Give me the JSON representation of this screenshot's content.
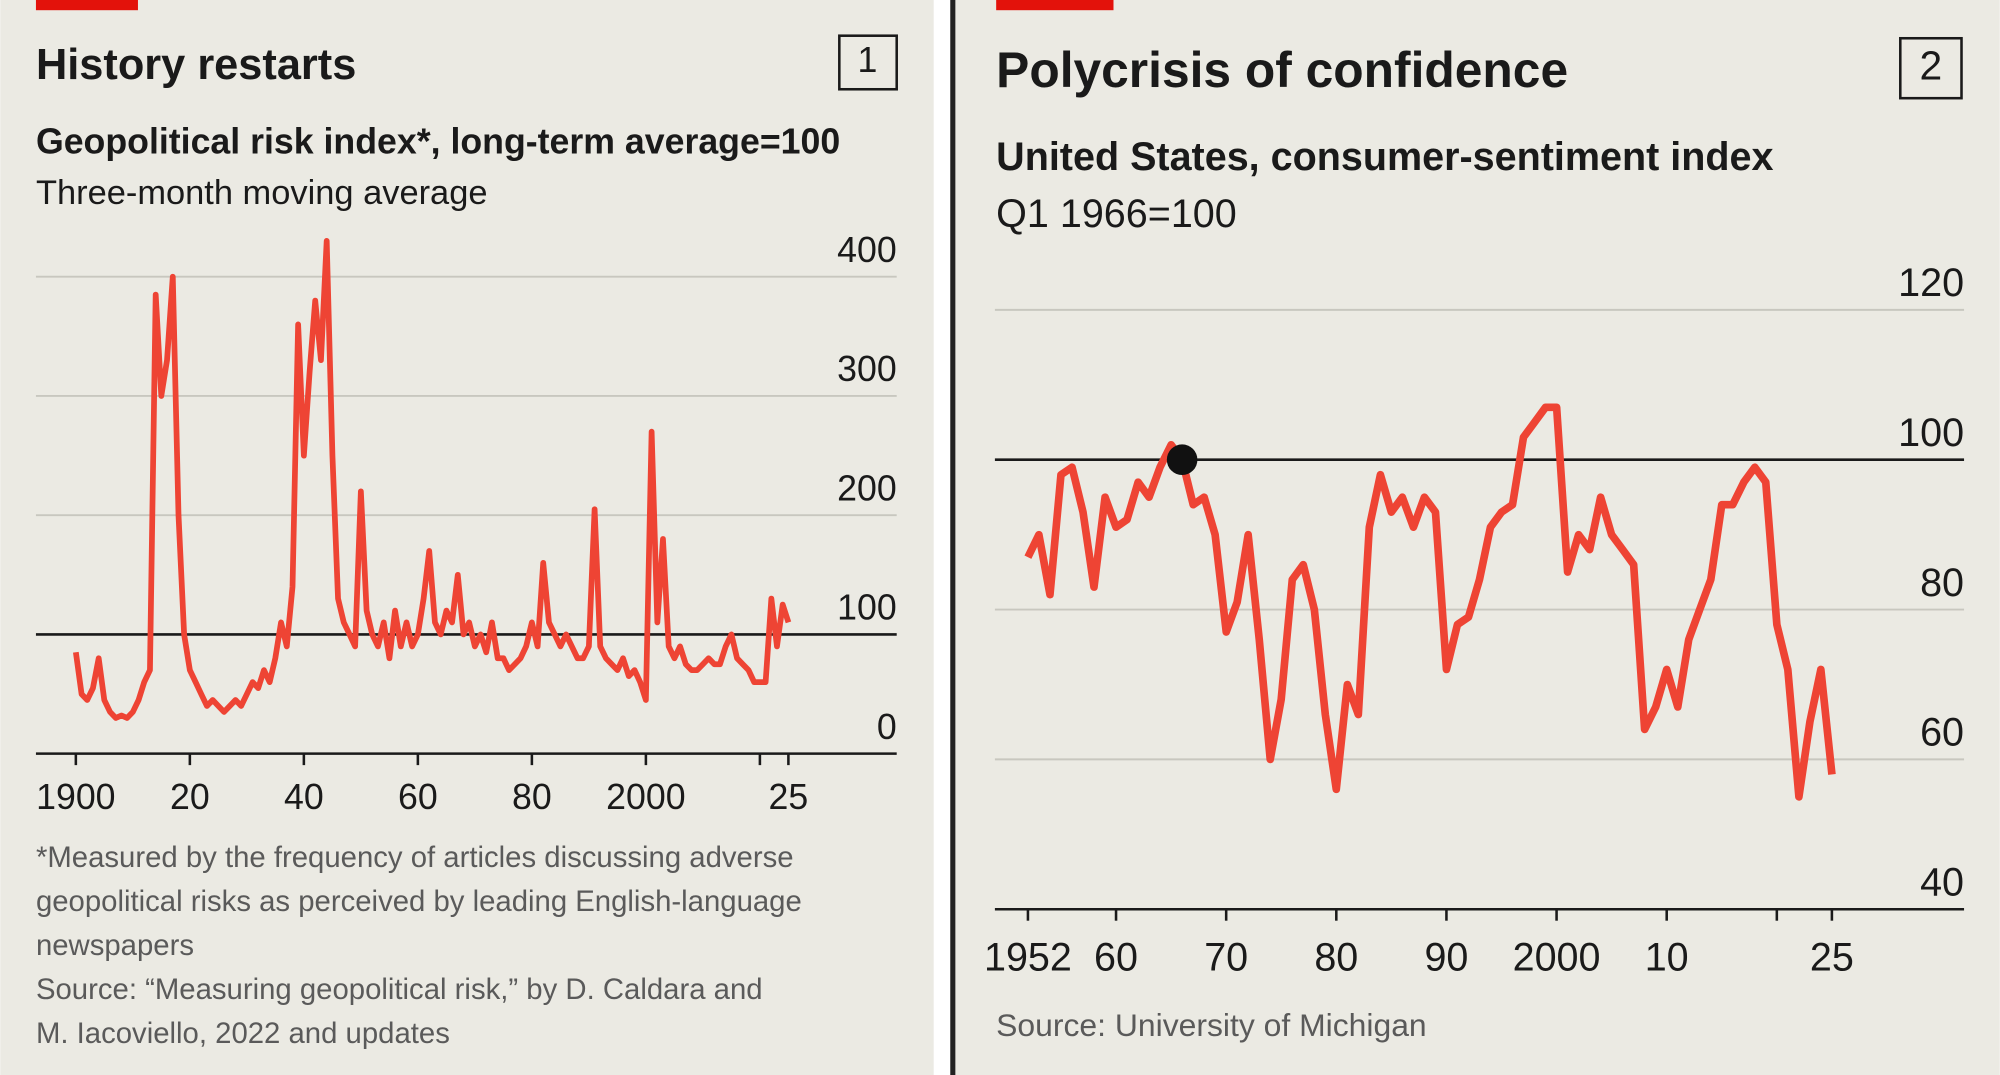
{
  "chart_data": [
    {
      "type": "line",
      "number": 1,
      "title": "History restarts",
      "subtitle": "Geopolitical risk index*, long-term average=100",
      "description": "Three-month moving average",
      "notes": [
        "*Measured by the frequency of articles discussing adverse",
        "geopolitical risks as perceived by leading English-language",
        "newspapers",
        "Source: “Measuring geopolitical risk,” by D. Caldara and",
        "M. Iacoviello, 2022 and updates"
      ],
      "x": [
        1900,
        1901,
        1902,
        1903,
        1904,
        1905,
        1906,
        1907,
        1908,
        1909,
        1910,
        1911,
        1912,
        1913,
        1914,
        1915,
        1916,
        1917,
        1918,
        1919,
        1920,
        1921,
        1922,
        1923,
        1924,
        1925,
        1926,
        1927,
        1928,
        1929,
        1930,
        1931,
        1932,
        1933,
        1934,
        1935,
        1936,
        1937,
        1938,
        1939,
        1940,
        1941,
        1942,
        1943,
        1944,
        1945,
        1946,
        1947,
        1948,
        1949,
        1950,
        1951,
        1952,
        1953,
        1954,
        1955,
        1956,
        1957,
        1958,
        1959,
        1960,
        1961,
        1962,
        1963,
        1964,
        1965,
        1966,
        1967,
        1968,
        1969,
        1970,
        1971,
        1972,
        1973,
        1974,
        1975,
        1976,
        1977,
        1978,
        1979,
        1980,
        1981,
        1982,
        1983,
        1984,
        1985,
        1986,
        1987,
        1988,
        1989,
        1990,
        1991,
        1992,
        1993,
        1994,
        1995,
        1996,
        1997,
        1998,
        1999,
        2000,
        2001,
        2002,
        2003,
        2004,
        2005,
        2006,
        2007,
        2008,
        2009,
        2010,
        2011,
        2012,
        2013,
        2014,
        2015,
        2016,
        2017,
        2018,
        2019,
        2020,
        2021,
        2022,
        2023,
        2024,
        2025
      ],
      "series": [
        {
          "name": "Geopolitical risk index",
          "color": "#ee4434",
          "values": [
            85,
            50,
            45,
            55,
            80,
            45,
            35,
            30,
            32,
            30,
            35,
            45,
            60,
            70,
            385,
            300,
            330,
            400,
            200,
            100,
            70,
            60,
            50,
            40,
            45,
            40,
            35,
            40,
            45,
            40,
            50,
            60,
            55,
            70,
            60,
            80,
            110,
            90,
            140,
            360,
            250,
            320,
            380,
            330,
            430,
            250,
            130,
            110,
            100,
            90,
            220,
            120,
            100,
            90,
            110,
            80,
            120,
            90,
            110,
            90,
            100,
            130,
            170,
            110,
            100,
            120,
            110,
            150,
            100,
            110,
            90,
            100,
            85,
            110,
            80,
            80,
            70,
            75,
            80,
            90,
            110,
            90,
            160,
            110,
            100,
            90,
            100,
            90,
            80,
            80,
            90,
            205,
            90,
            80,
            75,
            70,
            80,
            65,
            70,
            60,
            45,
            270,
            110,
            180,
            90,
            80,
            90,
            75,
            70,
            70,
            75,
            80,
            75,
            75,
            90,
            100,
            80,
            75,
            70,
            60,
            60,
            60,
            130,
            90,
            125,
            110
          ]
        }
      ],
      "xlim": [
        1893,
        2044
      ],
      "xticks": [
        1900,
        {
          "value": 1920,
          "label": "20"
        },
        {
          "value": 1940,
          "label": "40"
        },
        {
          "value": 1960,
          "label": "60"
        },
        {
          "value": 1980,
          "label": "80"
        },
        2000,
        {
          "value": 2025,
          "label": "25"
        }
      ],
      "xticks_minor": [
        2020
      ],
      "ylim": [
        0,
        400
      ],
      "yticks": [
        0,
        100,
        200,
        300,
        400
      ],
      "grid": true,
      "reference_line": 100
    },
    {
      "type": "line",
      "number": 2,
      "title": "Polycrisis of confidence",
      "subtitle": "United States, consumer-sentiment index",
      "description": "Q1 1966=100",
      "notes": [
        "Source: University of Michigan"
      ],
      "x": [
        1952,
        1953,
        1954,
        1955,
        1956,
        1957,
        1958,
        1959,
        1960,
        1961,
        1962,
        1963,
        1964,
        1965,
        1966,
        1967,
        1968,
        1969,
        1970,
        1971,
        1972,
        1973,
        1974,
        1975,
        1976,
        1977,
        1978,
        1979,
        1980,
        1981,
        1982,
        1983,
        1984,
        1985,
        1986,
        1987,
        1988,
        1989,
        1990,
        1991,
        1992,
        1993,
        1994,
        1995,
        1996,
        1997,
        1998,
        1999,
        2000,
        2001,
        2002,
        2003,
        2004,
        2005,
        2006,
        2007,
        2008,
        2009,
        2010,
        2011,
        2012,
        2013,
        2014,
        2015,
        2016,
        2017,
        2018,
        2019,
        2020,
        2021,
        2022,
        2023,
        2024,
        2025
      ],
      "series": [
        {
          "name": "Consumer-sentiment index",
          "color": "#ee4434",
          "values": [
            87,
            90,
            82,
            98,
            99,
            93,
            83,
            95,
            91,
            92,
            97,
            95,
            99,
            102,
            100,
            94,
            95,
            90,
            77,
            81,
            90,
            76,
            60,
            68,
            84,
            86,
            80,
            66,
            56,
            70,
            66,
            91,
            98,
            93,
            95,
            91,
            95,
            93,
            72,
            78,
            79,
            84,
            91,
            93,
            94,
            103,
            105,
            107,
            107,
            85,
            90,
            88,
            95,
            90,
            88,
            86,
            64,
            67,
            72,
            67,
            76,
            80,
            84,
            94,
            94,
            97,
            99,
            97,
            78,
            72,
            55,
            65,
            72,
            58
          ]
        }
      ],
      "xlim": [
        1949,
        2037
      ],
      "xticks": [
        1952,
        {
          "value": 1960,
          "label": "60"
        },
        {
          "value": 1970,
          "label": "70"
        },
        {
          "value": 1980,
          "label": "80"
        },
        {
          "value": 1990,
          "label": "90"
        },
        2000,
        {
          "value": 2010,
          "label": "10"
        },
        {
          "value": 2025,
          "label": "25"
        }
      ],
      "xticks_minor": [
        2020
      ],
      "ylim": [
        40,
        120
      ],
      "yticks": [
        40,
        60,
        80,
        100,
        120
      ],
      "grid": true,
      "reference_line": 100,
      "highlight": {
        "x": 1966,
        "y": 100
      }
    }
  ]
}
